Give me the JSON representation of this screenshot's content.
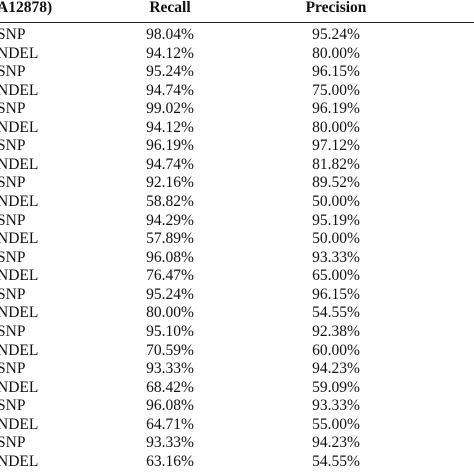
{
  "table": {
    "header": [
      "A12878)",
      "Recall",
      "Precision"
    ],
    "rows": [
      [
        "SNP",
        "98.04%",
        "95.24%"
      ],
      [
        "NDEL",
        "94.12%",
        "80.00%"
      ],
      [
        "SNP",
        "95.24%",
        "96.15%"
      ],
      [
        "NDEL",
        "94.74%",
        "75.00%"
      ],
      [
        "SNP",
        "99.02%",
        "96.19%"
      ],
      [
        "NDEL",
        "94.12%",
        "80.00%"
      ],
      [
        "SNP",
        "96.19%",
        "97.12%"
      ],
      [
        "NDEL",
        "94.74%",
        "81.82%"
      ],
      [
        "SNP",
        "92.16%",
        "89.52%"
      ],
      [
        "NDEL",
        "58.82%",
        "50.00%"
      ],
      [
        "SNP",
        "94.29%",
        "95.19%"
      ],
      [
        "NDEL",
        "57.89%",
        "50.00%"
      ],
      [
        "SNP",
        "96.08%",
        "93.33%"
      ],
      [
        "NDEL",
        "76.47%",
        "65.00%"
      ],
      [
        "SNP",
        "95.24%",
        "96.15%"
      ],
      [
        "NDEL",
        "80.00%",
        "54.55%"
      ],
      [
        "SNP",
        "95.10%",
        "92.38%"
      ],
      [
        "NDEL",
        "70.59%",
        "60.00%"
      ],
      [
        "SNP",
        "93.33%",
        "94.23%"
      ],
      [
        "NDEL",
        "68.42%",
        "59.09%"
      ],
      [
        "SNP",
        "96.08%",
        "93.33%"
      ],
      [
        "NDEL",
        "64.71%",
        "55.00%"
      ],
      [
        "SNP",
        "93.33%",
        "94.23%"
      ],
      [
        "NDEL",
        "63.16%",
        "54.55%"
      ]
    ]
  }
}
